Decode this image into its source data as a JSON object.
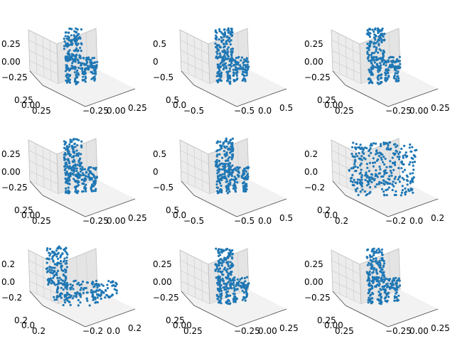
{
  "chart_data": [
    {
      "type": "scatter",
      "shape": "chair",
      "marker_color": "#1f77b4",
      "x_ticks": [
        "0.25",
        "0.00",
        "0.25"
      ],
      "y_ticks": [
        "−0.25",
        "0.00",
        "0.25"
      ],
      "z_ticks": [
        "0.25",
        "0.00",
        "−0.25"
      ],
      "x_range": [
        -0.35,
        0.35
      ],
      "y_range": [
        -0.35,
        0.35
      ],
      "z_range": [
        -0.35,
        0.35
      ]
    },
    {
      "type": "scatter",
      "shape": "chair",
      "marker_color": "#1f77b4",
      "x_ticks": [
        "0.5",
        "0.0",
        "−0.5"
      ],
      "y_ticks": [
        "−0.5",
        "0.0",
        "0.5"
      ],
      "z_ticks": [
        "0.5",
        "0",
        "−0.5"
      ],
      "x_range": [
        -0.6,
        0.6
      ],
      "y_range": [
        -0.6,
        0.6
      ],
      "z_range": [
        -0.6,
        0.6
      ]
    },
    {
      "type": "scatter",
      "shape": "chair",
      "marker_color": "#1f77b4",
      "x_ticks": [
        "0.25",
        "0.00",
        "0.25"
      ],
      "y_ticks": [
        "−0.25",
        "0.00",
        "0.25"
      ],
      "z_ticks": [
        "0.25",
        "0.00",
        "−0.25"
      ],
      "x_range": [
        -0.35,
        0.35
      ],
      "y_range": [
        -0.35,
        0.35
      ],
      "z_range": [
        -0.35,
        0.35
      ]
    },
    {
      "type": "scatter",
      "shape": "chair",
      "marker_color": "#1f77b4",
      "x_ticks": [
        "0.25",
        "0.00",
        "0.25"
      ],
      "y_ticks": [
        "−0.25",
        "0.00",
        "0.25"
      ],
      "z_ticks": [
        "0.25",
        "0.00",
        "−0.25"
      ],
      "x_range": [
        -0.35,
        0.35
      ],
      "y_range": [
        -0.35,
        0.35
      ],
      "z_range": [
        -0.35,
        0.35
      ]
    },
    {
      "type": "scatter",
      "shape": "chair",
      "marker_color": "#1f77b4",
      "x_ticks": [
        "0.5",
        "0.0",
        "−0.5"
      ],
      "y_ticks": [
        "−0.5",
        "0.0",
        "0.5"
      ],
      "z_ticks": [
        "0.5",
        "0",
        "−0.5"
      ],
      "x_range": [
        -0.6,
        0.6
      ],
      "y_range": [
        -0.6,
        0.6
      ],
      "z_range": [
        -0.6,
        0.6
      ]
    },
    {
      "type": "scatter",
      "shape": "sofa",
      "marker_color": "#1f77b4",
      "x_ticks": [
        "0.2",
        "0.0",
        "0.2"
      ],
      "y_ticks": [
        "−0.2",
        "0.0",
        "0.2"
      ],
      "z_ticks": [
        "0.2",
        "0.0",
        "−0.2"
      ],
      "x_range": [
        -0.3,
        0.3
      ],
      "y_range": [
        -0.3,
        0.3
      ],
      "z_range": [
        -0.3,
        0.3
      ]
    },
    {
      "type": "scatter",
      "shape": "lounge",
      "marker_color": "#1f77b4",
      "x_ticks": [
        "0.2",
        "0.0",
        "0.2"
      ],
      "y_ticks": [
        "−0.2",
        "0.0",
        "0.2"
      ],
      "z_ticks": [
        "0.2",
        "0.0",
        "−0.2"
      ],
      "x_range": [
        -0.3,
        0.3
      ],
      "y_range": [
        -0.3,
        0.3
      ],
      "z_range": [
        -0.3,
        0.3
      ]
    },
    {
      "type": "scatter",
      "shape": "chair",
      "marker_color": "#1f77b4",
      "x_ticks": [
        "0.25",
        "0.00",
        "0.25"
      ],
      "y_ticks": [
        "−0.25",
        "0.00",
        "0.25"
      ],
      "z_ticks": [
        "0.25",
        "0.00",
        "−0.25"
      ],
      "x_range": [
        -0.35,
        0.35
      ],
      "y_range": [
        -0.35,
        0.35
      ],
      "z_range": [
        -0.35,
        0.35
      ]
    },
    {
      "type": "scatter",
      "shape": "chair",
      "marker_color": "#1f77b4",
      "x_ticks": [
        "0.25",
        "0.00",
        "0.25"
      ],
      "y_ticks": [
        "−0.25",
        "0.00",
        "0.25"
      ],
      "z_ticks": [
        "0.25",
        "0.00",
        "−0.25"
      ],
      "x_range": [
        -0.35,
        0.35
      ],
      "y_range": [
        -0.35,
        0.35
      ],
      "z_range": [
        -0.35,
        0.35
      ]
    }
  ]
}
